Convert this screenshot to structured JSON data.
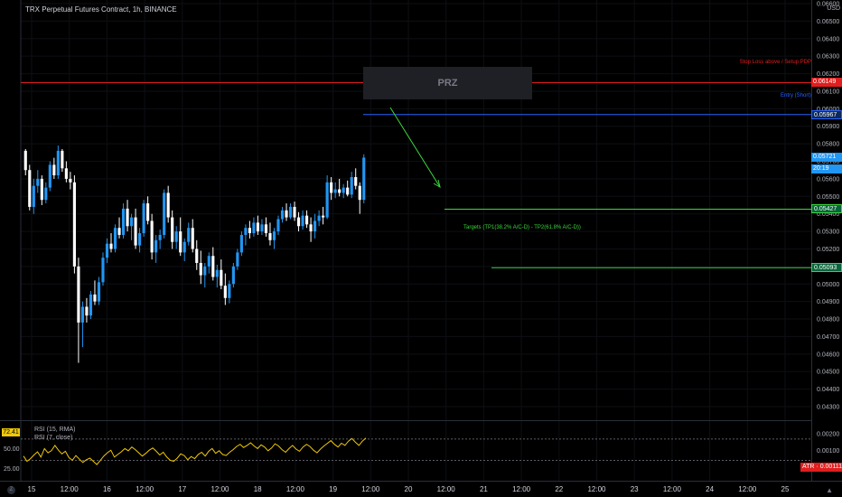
{
  "header": {
    "title": "TRX Perpetual Futures Contract, 1h, BINANCE",
    "currency": "USD"
  },
  "price_axis": {
    "ticks": [
      "0.06600",
      "0.06500",
      "0.06400",
      "0.06300",
      "0.06200",
      "0.06100",
      "0.06000",
      "0.05900",
      "0.05800",
      "0.05700",
      "0.05600",
      "0.05500",
      "0.05400",
      "0.05300",
      "0.05200",
      "0.05100",
      "0.05000",
      "0.04900",
      "0.04800",
      "0.04700",
      "0.04600",
      "0.04500",
      "0.04400",
      "0.04300"
    ],
    "tick_values": [
      0.066,
      0.065,
      0.064,
      0.063,
      0.062,
      0.061,
      0.06,
      0.059,
      0.058,
      0.057,
      0.056,
      0.055,
      0.054,
      0.053,
      0.052,
      0.051,
      0.05,
      0.049,
      0.048,
      0.047,
      0.046,
      0.045,
      0.044,
      0.043
    ],
    "labels": {
      "stop": {
        "text": "0.06149",
        "value": 0.06149,
        "color": "#e01e1e"
      },
      "entry": {
        "text": "0.05967",
        "value": 0.05967,
        "color": "#2962ff"
      },
      "last": {
        "text": "0.05721",
        "value": 0.05721,
        "color": "#2196f3"
      },
      "countdown": {
        "text": "20:19",
        "value": 0.05655,
        "color": "#2196f3"
      },
      "tp1": {
        "text": "0.05427",
        "value": 0.05427,
        "color": "#089981"
      },
      "tp2": {
        "text": "0.05093",
        "value": 0.05093,
        "color": "#089981"
      }
    }
  },
  "annotations": {
    "stop_text": "Stop Loss above / Setup PDP",
    "entry_text": "Entry (Short)",
    "targets_text": "Targets (TP1(38.2% A/C-D) - TP2(61.8% A/C-D))",
    "prz_text": "PRZ"
  },
  "rsi": {
    "badge": "72.41",
    "label_line1": "RSI (15, RMA)",
    "label_line2": "RSI (7, close)",
    "tick_50": "50.00",
    "tick_25": "25.00",
    "color": "#f0c808",
    "values": [
      38,
      28,
      33,
      40,
      46,
      36,
      52,
      44,
      48,
      58,
      49,
      42,
      47,
      35,
      30,
      39,
      32,
      26,
      31,
      34,
      28,
      22,
      30,
      38,
      44,
      49,
      36,
      41,
      46,
      52,
      48,
      55,
      50,
      44,
      38,
      43,
      49,
      53,
      47,
      40,
      45,
      36,
      30,
      28,
      34,
      42,
      39,
      31,
      37,
      33,
      41,
      45,
      38,
      47,
      52,
      43,
      48,
      41,
      39,
      45,
      50,
      56,
      60,
      54,
      58,
      63,
      57,
      52,
      59,
      55,
      48,
      53,
      61,
      57,
      50,
      45,
      52,
      58,
      51,
      47,
      55,
      60,
      56,
      49,
      44,
      51,
      57,
      62,
      67,
      60,
      55,
      62,
      58,
      66,
      71,
      64,
      58,
      66,
      72
    ]
  },
  "atr": {
    "ticks": [
      "0.00200",
      "0.00100",
      "0.00000"
    ],
    "tick_values": [
      0.002,
      0.001,
      0.0
    ],
    "label": "ATR · 0.00111",
    "value": 0.00111,
    "color": "#e01e1e"
  },
  "time_axis": {
    "labels": [
      "15",
      "12:00",
      "16",
      "12:00",
      "17",
      "12:00",
      "18",
      "12:00",
      "19",
      "12:00",
      "20",
      "12:00",
      "21",
      "12:00",
      "22",
      "12:00",
      "23",
      "12:00",
      "24",
      "12:00",
      "25"
    ]
  },
  "chart_data": {
    "type": "candlestick",
    "title": "TRX Perpetual Futures Contract, 1h, BINANCE",
    "up_color": "#2196f3",
    "down_color": "#ffffff",
    "ylim": [
      0.0427,
      0.0667
    ],
    "candles": [
      [
        0.0576,
        0.0577,
        0.0562,
        0.0565
      ],
      [
        0.0565,
        0.0568,
        0.0542,
        0.0544
      ],
      [
        0.0544,
        0.056,
        0.054,
        0.0556
      ],
      [
        0.0556,
        0.0565,
        0.0552,
        0.056
      ],
      [
        0.056,
        0.0562,
        0.0545,
        0.0548
      ],
      [
        0.0548,
        0.0558,
        0.0546,
        0.0555
      ],
      [
        0.0555,
        0.057,
        0.0553,
        0.0568
      ],
      [
        0.0568,
        0.0572,
        0.056,
        0.0562
      ],
      [
        0.0562,
        0.0579,
        0.056,
        0.0576
      ],
      [
        0.0576,
        0.0577,
        0.0564,
        0.0566
      ],
      [
        0.0566,
        0.057,
        0.0558,
        0.056
      ],
      [
        0.056,
        0.0564,
        0.0554,
        0.0558
      ],
      [
        0.0558,
        0.0562,
        0.0506,
        0.051
      ],
      [
        0.051,
        0.0515,
        0.0455,
        0.0478
      ],
      [
        0.0478,
        0.049,
        0.0464,
        0.0487
      ],
      [
        0.0487,
        0.0492,
        0.0478,
        0.0482
      ],
      [
        0.0482,
        0.0496,
        0.048,
        0.0494
      ],
      [
        0.0494,
        0.0502,
        0.0488,
        0.049
      ],
      [
        0.049,
        0.0504,
        0.0488,
        0.0501
      ],
      [
        0.0501,
        0.0518,
        0.0499,
        0.0515
      ],
      [
        0.0515,
        0.0526,
        0.0512,
        0.0523
      ],
      [
        0.0523,
        0.0529,
        0.0518,
        0.052
      ],
      [
        0.052,
        0.0534,
        0.0518,
        0.0532
      ],
      [
        0.0532,
        0.0538,
        0.0526,
        0.0528
      ],
      [
        0.0528,
        0.0546,
        0.0526,
        0.0543
      ],
      [
        0.0543,
        0.0548,
        0.053,
        0.0533
      ],
      [
        0.0533,
        0.054,
        0.0525,
        0.0538
      ],
      [
        0.0538,
        0.0543,
        0.052,
        0.0522
      ],
      [
        0.0522,
        0.0532,
        0.0518,
        0.0529
      ],
      [
        0.0529,
        0.0548,
        0.0527,
        0.0546
      ],
      [
        0.0546,
        0.055,
        0.0534,
        0.0536
      ],
      [
        0.0536,
        0.054,
        0.0514,
        0.0518
      ],
      [
        0.0518,
        0.0528,
        0.0512,
        0.0525
      ],
      [
        0.0525,
        0.0531,
        0.052,
        0.0528
      ],
      [
        0.0528,
        0.0554,
        0.0526,
        0.0552
      ],
      [
        0.0552,
        0.0556,
        0.0535,
        0.0538
      ],
      [
        0.0538,
        0.0542,
        0.052,
        0.0524
      ],
      [
        0.0524,
        0.0533,
        0.052,
        0.053
      ],
      [
        0.053,
        0.0538,
        0.0516,
        0.0518
      ],
      [
        0.0518,
        0.0526,
        0.0513,
        0.0524
      ],
      [
        0.0524,
        0.0535,
        0.0522,
        0.0532
      ],
      [
        0.0532,
        0.0537,
        0.0518,
        0.052
      ],
      [
        0.052,
        0.0525,
        0.0508,
        0.0512
      ],
      [
        0.0512,
        0.0519,
        0.05,
        0.0505
      ],
      [
        0.0505,
        0.0512,
        0.0498,
        0.051
      ],
      [
        0.051,
        0.0518,
        0.0506,
        0.0516
      ],
      [
        0.0516,
        0.0521,
        0.0502,
        0.0504
      ],
      [
        0.0504,
        0.0511,
        0.0498,
        0.0508
      ],
      [
        0.0508,
        0.0514,
        0.0497,
        0.0499
      ],
      [
        0.0499,
        0.0506,
        0.0488,
        0.0492
      ],
      [
        0.0492,
        0.0502,
        0.0489,
        0.05
      ],
      [
        0.05,
        0.0512,
        0.0498,
        0.051
      ],
      [
        0.051,
        0.052,
        0.0508,
        0.0518
      ],
      [
        0.0518,
        0.053,
        0.0516,
        0.0528
      ],
      [
        0.0528,
        0.0534,
        0.0522,
        0.0532
      ],
      [
        0.0532,
        0.0536,
        0.0526,
        0.0529
      ],
      [
        0.0529,
        0.0538,
        0.0527,
        0.0535
      ],
      [
        0.0535,
        0.0539,
        0.0528,
        0.053
      ],
      [
        0.053,
        0.0537,
        0.0528,
        0.0534
      ],
      [
        0.0534,
        0.0538,
        0.0527,
        0.0529
      ],
      [
        0.0529,
        0.0535,
        0.0522,
        0.0525
      ],
      [
        0.0525,
        0.0532,
        0.052,
        0.053
      ],
      [
        0.053,
        0.0539,
        0.0528,
        0.0537
      ],
      [
        0.0537,
        0.0544,
        0.0535,
        0.0542
      ],
      [
        0.0542,
        0.0546,
        0.0536,
        0.0538
      ],
      [
        0.0538,
        0.0546,
        0.0537,
        0.0544
      ],
      [
        0.0544,
        0.0547,
        0.0536,
        0.0538
      ],
      [
        0.0538,
        0.0541,
        0.053,
        0.0533
      ],
      [
        0.0533,
        0.0542,
        0.0531,
        0.0539
      ],
      [
        0.0539,
        0.0542,
        0.0532,
        0.0534
      ],
      [
        0.0534,
        0.0538,
        0.0524,
        0.053
      ],
      [
        0.053,
        0.054,
        0.0526,
        0.0536
      ],
      [
        0.0536,
        0.0542,
        0.0533,
        0.0539
      ],
      [
        0.0539,
        0.0544,
        0.0534,
        0.0538
      ],
      [
        0.0538,
        0.0562,
        0.0537,
        0.0558
      ],
      [
        0.0558,
        0.0561,
        0.0548,
        0.0552
      ],
      [
        0.0552,
        0.0558,
        0.0549,
        0.0554
      ],
      [
        0.0554,
        0.056,
        0.055,
        0.0552
      ],
      [
        0.0552,
        0.0557,
        0.0549,
        0.0555
      ],
      [
        0.0555,
        0.0559,
        0.055,
        0.0551
      ],
      [
        0.0551,
        0.0564,
        0.0549,
        0.0561
      ],
      [
        0.0561,
        0.0566,
        0.0554,
        0.0556
      ],
      [
        0.0556,
        0.0558,
        0.054,
        0.0548
      ],
      [
        0.0548,
        0.0574,
        0.0546,
        0.05721
      ]
    ]
  }
}
